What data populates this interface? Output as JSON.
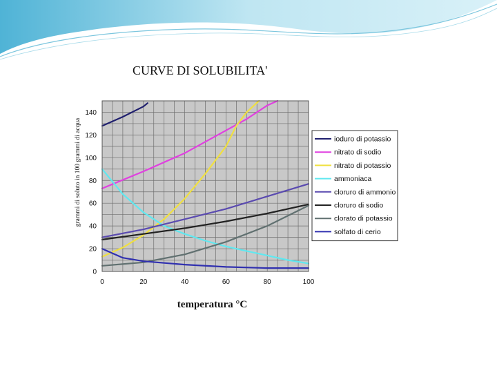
{
  "chart_data": {
    "type": "line",
    "title": "CURVE DI SOLUBILITA'",
    "xlabel": "temperatura °C",
    "ylabel": "grammi di soluto in 100 grammi di acqua",
    "xlim": [
      0,
      100
    ],
    "ylim": [
      0,
      150
    ],
    "x_ticks": [
      0,
      20,
      40,
      60,
      80,
      100
    ],
    "y_ticks": [
      0,
      20,
      40,
      60,
      80,
      100,
      120,
      140
    ],
    "grid": true,
    "legend_position": "right",
    "series": [
      {
        "name": "ioduro di potassio",
        "color": "#1f1f6e",
        "points": [
          [
            0,
            128
          ],
          [
            10,
            136
          ],
          [
            20,
            145
          ],
          [
            22,
            148
          ]
        ]
      },
      {
        "name": "nitrato di sodio",
        "color": "#e040e0",
        "points": [
          [
            0,
            73
          ],
          [
            20,
            88
          ],
          [
            40,
            104
          ],
          [
            60,
            124
          ],
          [
            70,
            134
          ],
          [
            80,
            146
          ],
          [
            85,
            150
          ]
        ]
      },
      {
        "name": "nitrato di potassio",
        "color": "#f0e040",
        "points": [
          [
            0,
            13
          ],
          [
            10,
            21
          ],
          [
            20,
            32
          ],
          [
            30,
            46
          ],
          [
            40,
            64
          ],
          [
            50,
            86
          ],
          [
            60,
            110
          ],
          [
            65,
            128
          ],
          [
            70,
            140
          ],
          [
            76,
            150
          ]
        ]
      },
      {
        "name": "ammoniaca",
        "color": "#60e8f0",
        "points": [
          [
            0,
            90
          ],
          [
            10,
            68
          ],
          [
            20,
            52
          ],
          [
            30,
            40
          ],
          [
            40,
            33
          ],
          [
            50,
            27
          ],
          [
            60,
            22
          ],
          [
            70,
            18
          ],
          [
            80,
            14
          ],
          [
            90,
            10
          ],
          [
            100,
            7
          ]
        ]
      },
      {
        "name": "cloruro di ammonio",
        "color": "#5a4ab0",
        "points": [
          [
            0,
            30
          ],
          [
            20,
            37
          ],
          [
            40,
            46
          ],
          [
            60,
            55
          ],
          [
            80,
            66
          ],
          [
            100,
            77
          ]
        ]
      },
      {
        "name": "cloruro di sodio",
        "color": "#222222",
        "points": [
          [
            0,
            28
          ],
          [
            20,
            33
          ],
          [
            40,
            38
          ],
          [
            60,
            44
          ],
          [
            80,
            51
          ],
          [
            100,
            59
          ]
        ]
      },
      {
        "name": "clorato di potassio",
        "color": "#607070",
        "points": [
          [
            0,
            5
          ],
          [
            20,
            8
          ],
          [
            40,
            15
          ],
          [
            60,
            26
          ],
          [
            80,
            40
          ],
          [
            100,
            58
          ]
        ]
      },
      {
        "name": "solfato di cerio",
        "color": "#3030b0",
        "points": [
          [
            0,
            20
          ],
          [
            10,
            12
          ],
          [
            20,
            9
          ],
          [
            40,
            6
          ],
          [
            60,
            4
          ],
          [
            80,
            3
          ],
          [
            100,
            3
          ]
        ]
      }
    ]
  }
}
